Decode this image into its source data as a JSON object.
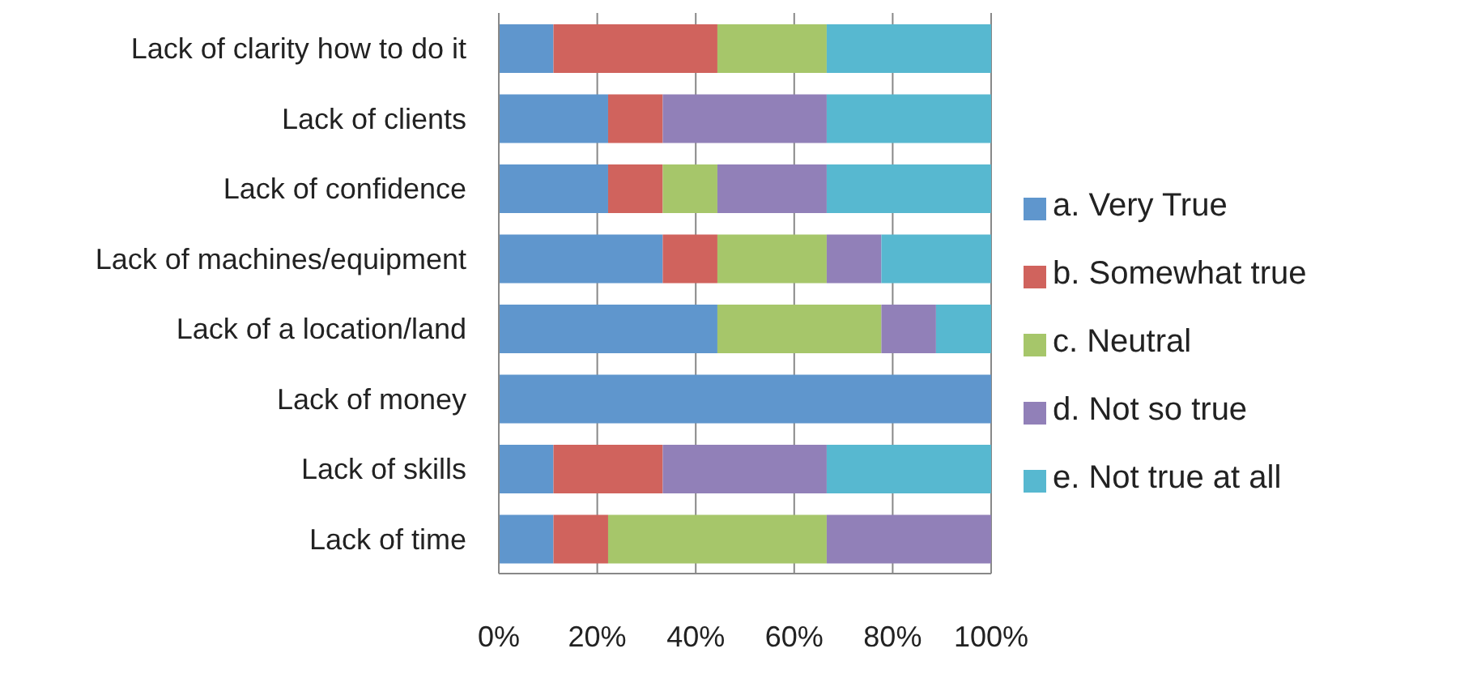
{
  "chart_data": {
    "type": "bar",
    "orientation": "horizontal",
    "stacked": true,
    "categories": [
      "Lack of clarity how to do it",
      "Lack of clients",
      "Lack of confidence",
      "Lack of machines/equipment",
      "Lack of a location/land",
      "Lack of money",
      "Lack of skills",
      "Lack of time"
    ],
    "series": [
      {
        "name": "a. Very True",
        "color": "#5f96cd",
        "values": [
          11.1,
          22.2,
          22.2,
          33.3,
          44.4,
          100,
          11.1,
          11.1
        ]
      },
      {
        "name": "b. Somewhat true",
        "color": "#d0635d",
        "values": [
          33.3,
          11.1,
          11.1,
          11.1,
          0,
          0,
          22.2,
          11.1
        ]
      },
      {
        "name": "c. Neutral",
        "color": "#a6c66a",
        "values": [
          22.2,
          0,
          11.1,
          22.2,
          33.3,
          0,
          0,
          44.4
        ]
      },
      {
        "name": "d. Not so true",
        "color": "#9180b8",
        "values": [
          0,
          33.3,
          22.2,
          11.1,
          11.1,
          0,
          33.3,
          33.4
        ]
      },
      {
        "name": "e. Not true at all",
        "color": "#57b8d0",
        "values": [
          33.4,
          33.4,
          33.4,
          22.3,
          11.2,
          0,
          33.4,
          0
        ]
      }
    ],
    "xlim": [
      0,
      100
    ],
    "xticks": [
      {
        "value": 0,
        "label": "0%"
      },
      {
        "value": 20,
        "label": "20%"
      },
      {
        "value": 40,
        "label": "40%"
      },
      {
        "value": 60,
        "label": "60%"
      },
      {
        "value": 80,
        "label": "80%"
      },
      {
        "value": 100,
        "label": "100%"
      }
    ],
    "grid": "x",
    "legend": "right"
  }
}
